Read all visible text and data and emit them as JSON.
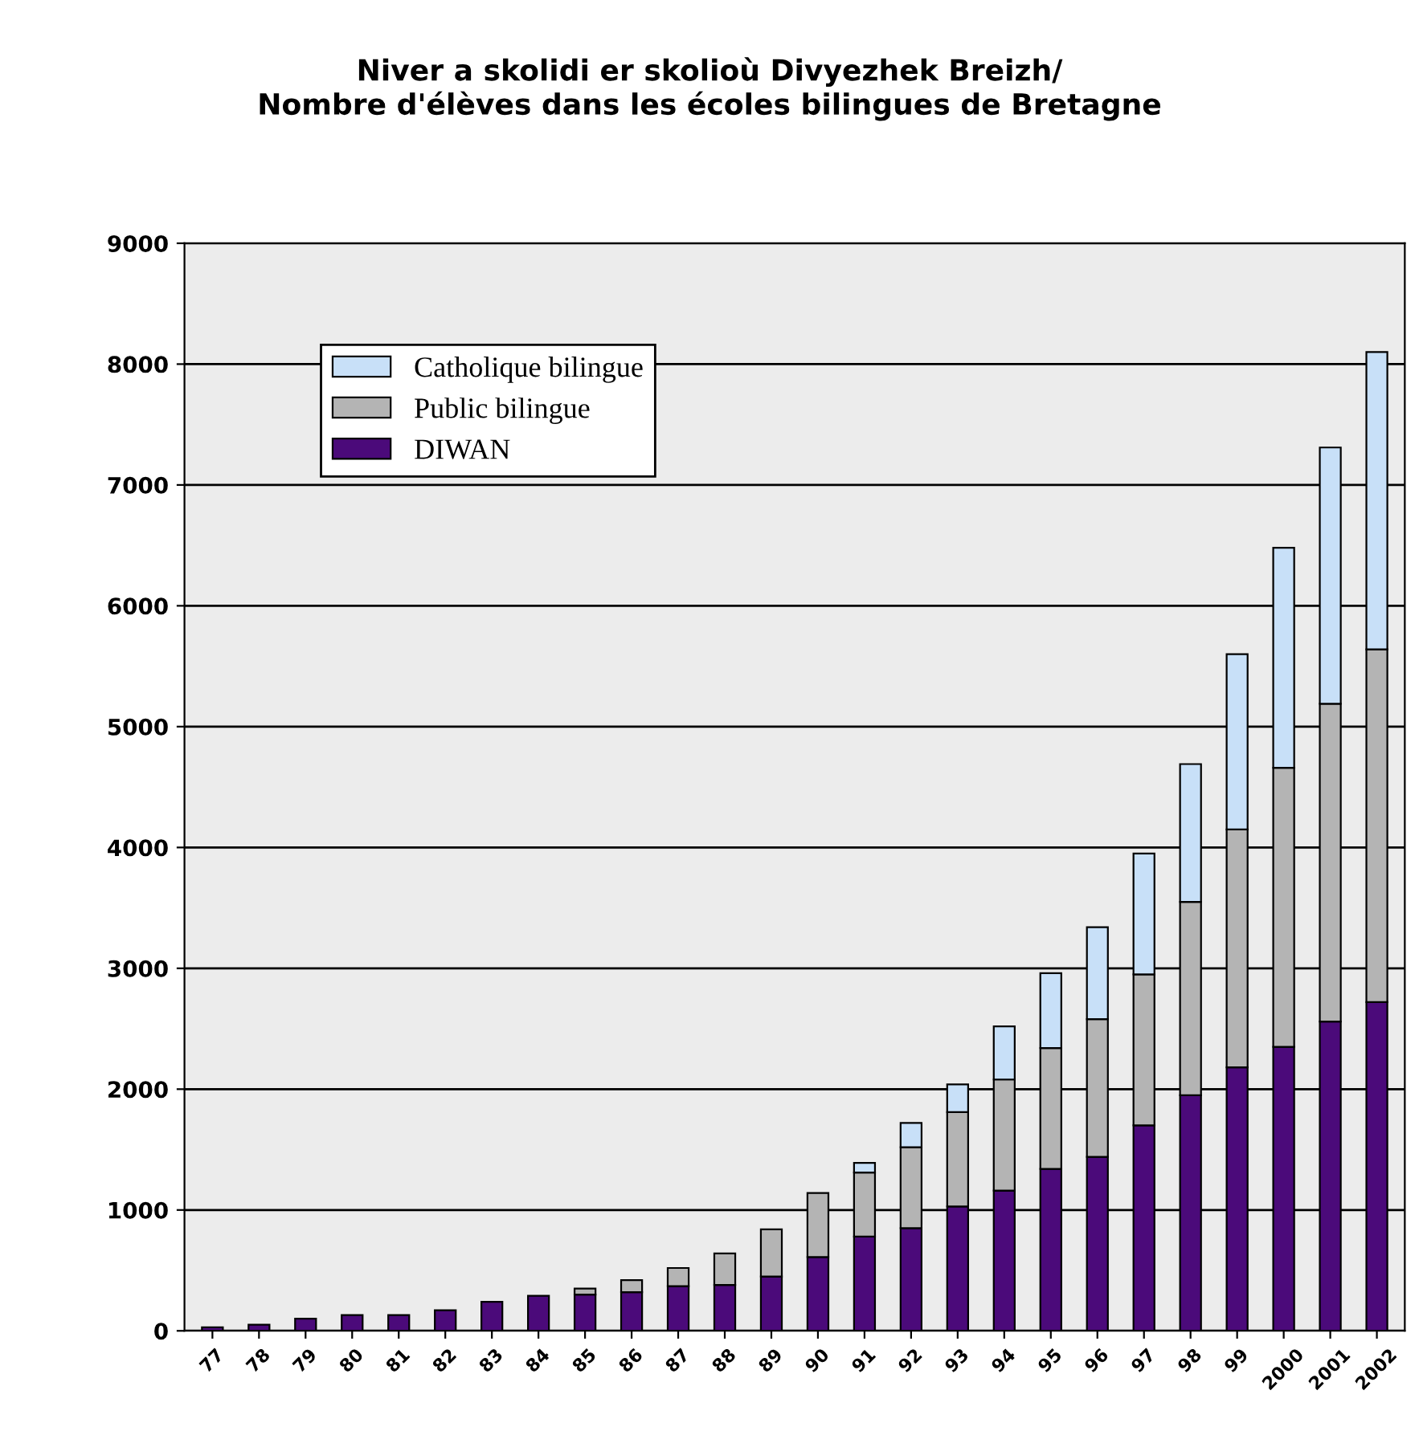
{
  "chart_data": {
    "type": "bar",
    "stacked": true,
    "title": "Niver a skolidi er skolioù Divyezhek Breizh/\nNombre d'élèves dans les écoles bilingues de Bretagne",
    "categories": [
      "77",
      "78",
      "79",
      "80",
      "81",
      "82",
      "83",
      "84",
      "85",
      "86",
      "87",
      "88",
      "89",
      "90",
      "91",
      "92",
      "93",
      "94",
      "95",
      "96",
      "97",
      "98",
      "99",
      "2000",
      "2001",
      "2002"
    ],
    "series": [
      {
        "name": "DIWAN",
        "color": "#4b0a7a",
        "values": [
          30,
          50,
          100,
          130,
          130,
          170,
          240,
          290,
          300,
          320,
          370,
          380,
          450,
          610,
          780,
          850,
          1030,
          1160,
          1340,
          1440,
          1700,
          1950,
          2180,
          2350,
          2560,
          2720
        ]
      },
      {
        "name": "Public bilingue",
        "color": "#b4b4b4",
        "values": [
          null,
          null,
          null,
          null,
          null,
          null,
          null,
          null,
          50,
          100,
          150,
          260,
          390,
          530,
          530,
          670,
          780,
          920,
          1000,
          1140,
          1250,
          1600,
          1970,
          2310,
          2630,
          2920
        ]
      },
      {
        "name": "Catholique bilingue",
        "color": "#c8e0f8",
        "values": [
          null,
          null,
          null,
          null,
          null,
          null,
          null,
          null,
          null,
          null,
          null,
          null,
          null,
          null,
          80,
          200,
          230,
          440,
          620,
          760,
          1000,
          1140,
          1450,
          1820,
          2120,
          2460
        ]
      }
    ],
    "ylim": [
      0,
      9000
    ],
    "yticks": [
      0,
      1000,
      2000,
      3000,
      4000,
      5000,
      6000,
      7000,
      8000,
      9000
    ],
    "grid": "y",
    "legend": "top left"
  }
}
